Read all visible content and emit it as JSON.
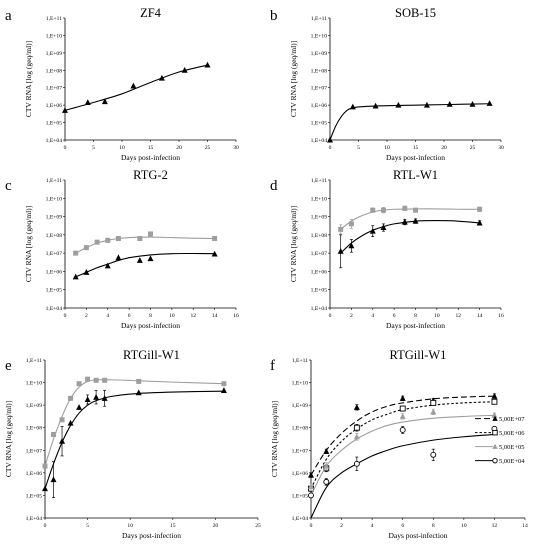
{
  "chart_data": [
    {
      "type": "scatter",
      "panel": "a",
      "title": "ZF4",
      "xlabel": "Days post-infection",
      "ylabel": "CTV RNA [log (geq/ml)]",
      "xlim": [
        0,
        30
      ],
      "xticks": [
        0,
        5,
        10,
        15,
        20,
        25,
        30
      ],
      "ylog": [
        4,
        11
      ],
      "yticklabels": [
        "1,E+04",
        "1,E+05",
        "1,E+06",
        "1,E+07",
        "1,E+08",
        "1,E+09",
        "1,E+10",
        "1,E+11"
      ],
      "series": [
        {
          "color": "#000000",
          "marker": "triangle",
          "x": [
            0,
            4,
            7,
            12,
            17,
            21,
            25
          ],
          "y": [
            5.7,
            6.15,
            6.2,
            7.1,
            7.55,
            8.0,
            8.3
          ],
          "curve_x": [
            0,
            5,
            10,
            15,
            20,
            25
          ],
          "curve_y": [
            5.7,
            6.15,
            6.65,
            7.3,
            7.9,
            8.3
          ]
        }
      ]
    },
    {
      "type": "scatter",
      "panel": "b",
      "title": "SOB-15",
      "xlabel": "Days post-infection",
      "ylabel": "CTV RNA [log (geq/ml)]",
      "xlim": [
        0,
        30
      ],
      "xticks": [
        0,
        5,
        10,
        15,
        20,
        25,
        30
      ],
      "ylog": [
        4,
        11
      ],
      "yticklabels": [
        "1,E+04",
        "1,E+05",
        "1,E+06",
        "1,E+07",
        "1,E+08",
        "1,E+09",
        "1,E+10",
        "1,E+11"
      ],
      "series": [
        {
          "color": "#000000",
          "marker": "triangle",
          "x": [
            0,
            4,
            8,
            12,
            17,
            21,
            25,
            28
          ],
          "y": [
            4.0,
            5.9,
            5.95,
            6.0,
            6.0,
            6.05,
            6.05,
            6.1
          ],
          "curve_x": [
            0,
            1,
            2,
            3,
            4,
            6,
            10,
            15,
            20,
            28
          ],
          "curve_y": [
            4.0,
            4.8,
            5.35,
            5.7,
            5.85,
            5.92,
            5.97,
            6.0,
            6.03,
            6.08
          ]
        }
      ]
    },
    {
      "type": "scatter",
      "panel": "c",
      "title": "RTG-2",
      "xlabel": "Days post-infection",
      "ylabel": "CTV RNA [log (geq/ml)]",
      "xlim": [
        0,
        16
      ],
      "xticks": [
        0,
        2,
        4,
        6,
        8,
        10,
        12,
        14,
        16
      ],
      "ylog": [
        4,
        11
      ],
      "yticklabels": [
        "1,E+04",
        "1,E+05",
        "1,E+06",
        "1,E+07",
        "1,E+08",
        "1,E+09",
        "1,E+10",
        "1,E+11"
      ],
      "series": [
        {
          "color": "#9e9e9e",
          "marker": "square",
          "x": [
            1,
            2,
            3,
            4,
            5,
            7,
            8,
            14
          ],
          "y": [
            7.0,
            7.3,
            7.6,
            7.7,
            7.8,
            7.8,
            8.05,
            7.8
          ],
          "curve_x": [
            1,
            2,
            3,
            4,
            5,
            6,
            8,
            10,
            12,
            14
          ],
          "curve_y": [
            7.0,
            7.3,
            7.55,
            7.7,
            7.8,
            7.85,
            7.88,
            7.85,
            7.82,
            7.8
          ]
        },
        {
          "color": "#000000",
          "marker": "triangle",
          "x": [
            1,
            2,
            4,
            5,
            7,
            8,
            14
          ],
          "y": [
            5.7,
            5.95,
            6.3,
            6.75,
            6.6,
            6.7,
            6.95
          ],
          "curve_x": [
            1,
            2,
            3,
            4,
            5,
            6,
            8,
            10,
            12,
            14
          ],
          "curve_y": [
            5.7,
            5.95,
            6.2,
            6.4,
            6.6,
            6.75,
            6.9,
            6.97,
            6.98,
            6.97
          ]
        }
      ]
    },
    {
      "type": "scatter",
      "panel": "d",
      "title": "RTL-W1",
      "xlabel": "Days post-infection",
      "ylabel": "CTV RNA [log (geq/ml)]",
      "xlim": [
        0,
        16
      ],
      "xticks": [
        0,
        2,
        4,
        6,
        8,
        10,
        12,
        14,
        16
      ],
      "ylog": [
        4,
        11
      ],
      "yticklabels": [
        "1,E+04",
        "1,E+05",
        "1,E+06",
        "1,E+07",
        "1,E+08",
        "1,E+09",
        "1,E+10",
        "1,E+11"
      ],
      "series": [
        {
          "color": "#9e9e9e",
          "marker": "square",
          "x": [
            1,
            2,
            4,
            5,
            7,
            8,
            14
          ],
          "y": [
            8.3,
            8.6,
            9.35,
            9.35,
            9.45,
            9.35,
            9.4
          ],
          "err": [
            0.25,
            0.25,
            0.12,
            0.15,
            0.12,
            0.1,
            0.12
          ],
          "curve_x": [
            1,
            2,
            3,
            4,
            5,
            6,
            8,
            10,
            12,
            14
          ],
          "curve_y": [
            8.3,
            8.75,
            9.05,
            9.25,
            9.35,
            9.4,
            9.42,
            9.42,
            9.4,
            9.4
          ]
        },
        {
          "color": "#000000",
          "marker": "triangle",
          "x": [
            1,
            2,
            4,
            5,
            7,
            8,
            14
          ],
          "y": [
            7.1,
            7.4,
            8.2,
            8.4,
            8.7,
            8.75,
            8.65
          ],
          "err": [
            0.9,
            0.35,
            0.3,
            0.2,
            0.15,
            0.12,
            0.12
          ],
          "curve_x": [
            1,
            2,
            3,
            4,
            5,
            6,
            8,
            10,
            12,
            14
          ],
          "curve_y": [
            7.0,
            7.55,
            7.95,
            8.25,
            8.45,
            8.6,
            8.75,
            8.78,
            8.75,
            8.65
          ]
        }
      ]
    },
    {
      "type": "scatter",
      "panel": "e",
      "title": "RTGill-W1",
      "xlabel": "Days post-infection",
      "ylabel": "CTV RNA [log (geq/ml)]",
      "xlim": [
        0,
        25
      ],
      "xticks": [
        0,
        5,
        10,
        15,
        20,
        25
      ],
      "ylog": [
        4,
        11
      ],
      "yticklabels": [
        "1,E+04",
        "1,E+05",
        "1,E+06",
        "1,E+07",
        "1,E+08",
        "1,E+09",
        "1,E+10",
        "1,E+11"
      ],
      "series": [
        {
          "color": "#9e9e9e",
          "marker": "square",
          "x": [
            0,
            1,
            2,
            3,
            4,
            5,
            6,
            7,
            11,
            21
          ],
          "y": [
            6.3,
            7.7,
            8.35,
            9.3,
            9.95,
            10.15,
            10.1,
            10.1,
            10.05,
            9.95
          ],
          "err": [
            0,
            0,
            0,
            0,
            0,
            0.06,
            0,
            0,
            0,
            0
          ],
          "curve_x": [
            0,
            1,
            2,
            3,
            4,
            5,
            6,
            8,
            11,
            15,
            21
          ],
          "curve_y": [
            6.3,
            7.5,
            8.5,
            9.3,
            9.8,
            10.05,
            10.12,
            10.12,
            10.08,
            10.02,
            9.95
          ]
        },
        {
          "color": "#000000",
          "marker": "triangle",
          "x": [
            0,
            1,
            2,
            3,
            4,
            5,
            6,
            7,
            11,
            21
          ],
          "y": [
            5.3,
            5.7,
            7.4,
            8.2,
            8.9,
            9.25,
            9.35,
            9.3,
            9.55,
            9.65
          ],
          "err": [
            0,
            0.8,
            0.65,
            0,
            0,
            0.2,
            0.3,
            0.35,
            0,
            0
          ],
          "curve_x": [
            0,
            1,
            2,
            3,
            4,
            5,
            6,
            8,
            11,
            15,
            21
          ],
          "curve_y": [
            5.3,
            6.4,
            7.35,
            8.1,
            8.65,
            9.0,
            9.2,
            9.4,
            9.52,
            9.58,
            9.62
          ]
        }
      ]
    },
    {
      "type": "scatter",
      "panel": "f",
      "title": "RTGill-W1",
      "xlabel": "Days post-infection",
      "ylabel": "CTV RNA [log (geq/ml)]",
      "xlim": [
        0,
        14
      ],
      "xticks": [
        0,
        2,
        4,
        6,
        8,
        10,
        12,
        14
      ],
      "ylog": [
        4,
        11
      ],
      "yticklabels": [
        "1,E+04",
        "1,E+05",
        "1,E+06",
        "1,E+07",
        "1,E+08",
        "1,E+09",
        "1,E+10",
        "1,E+11"
      ],
      "legend": "right",
      "series": [
        {
          "name": "5,00E+07",
          "color": "#000000",
          "marker": "triangle",
          "line": "long-dash",
          "x": [
            0,
            1,
            3,
            6,
            8,
            12
          ],
          "y": [
            5.9,
            6.95,
            8.9,
            9.3,
            9.2,
            9.4
          ],
          "err": [
            0.1,
            0.1,
            0.12,
            0.1,
            0.1,
            0.1
          ],
          "curve_x": [
            0,
            1,
            2,
            3,
            4,
            5,
            6,
            8,
            10,
            12
          ],
          "curve_y": [
            5.9,
            7.0,
            7.75,
            8.3,
            8.7,
            8.95,
            9.1,
            9.28,
            9.36,
            9.4
          ]
        },
        {
          "name": "5,00E+06",
          "color": "#000000",
          "marker": "square-open",
          "line": "short-dash",
          "x": [
            0,
            1,
            3,
            6,
            8,
            12
          ],
          "y": [
            5.3,
            6.2,
            8.0,
            8.85,
            9.1,
            9.15
          ],
          "err": [
            0.12,
            0.15,
            0.15,
            0.1,
            0.1,
            0.1
          ],
          "curve_x": [
            0,
            1,
            2,
            3,
            4,
            5,
            6,
            8,
            10,
            12
          ],
          "curve_y": [
            5.3,
            6.6,
            7.4,
            7.95,
            8.35,
            8.6,
            8.8,
            9.0,
            9.1,
            9.15
          ]
        },
        {
          "name": "5,00E+05",
          "color": "#9e9e9e",
          "marker": "triangle",
          "line": "solid",
          "x": [
            0,
            1,
            3,
            6,
            8,
            12
          ],
          "y": [
            5.4,
            6.3,
            7.6,
            8.5,
            8.7,
            8.55
          ],
          "err": [
            0.12,
            0.15,
            0.15,
            0.12,
            0.12,
            0.1
          ],
          "curve_x": [
            0,
            1,
            2,
            3,
            4,
            5,
            6,
            8,
            10,
            12
          ],
          "curve_y": [
            5.0,
            6.3,
            7.0,
            7.5,
            7.85,
            8.1,
            8.25,
            8.42,
            8.5,
            8.55
          ]
        },
        {
          "name": "5,00E+04",
          "color": "#000000",
          "marker": "circle-open",
          "line": "solid",
          "x": [
            0,
            1,
            3,
            6,
            8,
            12
          ],
          "y": [
            5.0,
            5.6,
            6.4,
            7.9,
            6.8,
            7.95
          ],
          "err": [
            0.1,
            0.15,
            0.3,
            0.15,
            0.25,
            0.1
          ],
          "curve_x": [
            0,
            1,
            2,
            3,
            4,
            5,
            6,
            8,
            10,
            12
          ],
          "curve_y": [
            4.0,
            5.35,
            6.0,
            6.4,
            6.75,
            7.0,
            7.2,
            7.45,
            7.6,
            7.7
          ]
        }
      ]
    }
  ]
}
